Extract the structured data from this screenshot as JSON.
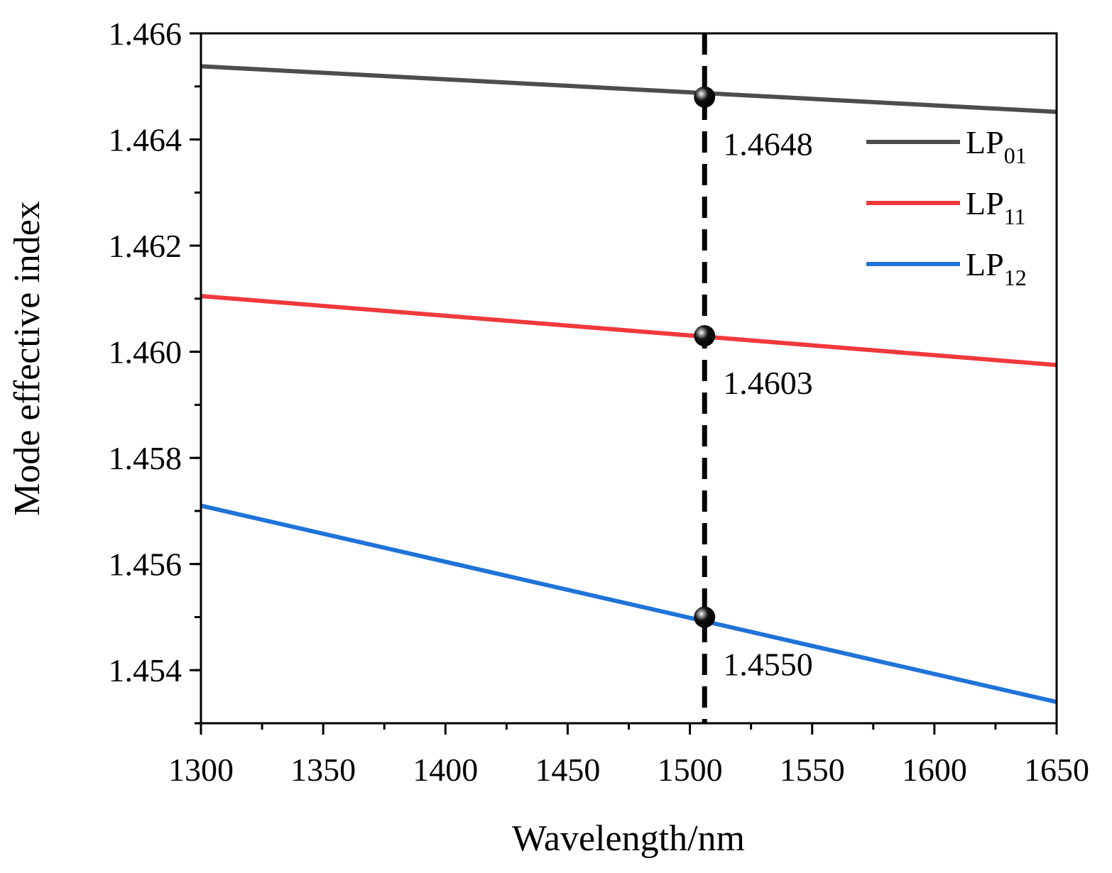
{
  "chart_data": {
    "type": "line",
    "xlabel": "Wavelength/nm",
    "ylabel": "Mode effective index",
    "xlim": [
      1300,
      1650
    ],
    "ylim": [
      1.453,
      1.466
    ],
    "x_ticks": [
      "1300",
      "1350",
      "1400",
      "1450",
      "1500",
      "1550",
      "1600",
      "1650"
    ],
    "y_ticks": [
      "1.454",
      "1.456",
      "1.458",
      "1.460",
      "1.462",
      "1.464",
      "1.466"
    ],
    "grid": false,
    "legend_position": "top-right",
    "series": [
      {
        "name_main": "LP",
        "name_sub": "01",
        "color": "#4d4d4d",
        "x": [
          1300,
          1650
        ],
        "y": [
          1.46538,
          1.46452
        ]
      },
      {
        "name_main": "LP",
        "name_sub": "11",
        "color": "#f0393c",
        "x": [
          1300,
          1650
        ],
        "y": [
          1.46105,
          1.45975
        ]
      },
      {
        "name_main": "LP",
        "name_sub": "12",
        "color": "#1f73d9",
        "x": [
          1300,
          1650
        ],
        "y": [
          1.4571,
          1.4534
        ]
      }
    ],
    "reference_line": {
      "x": 1506,
      "style": "dashed",
      "color": "#000000"
    },
    "annotations": [
      {
        "text": "1.4648",
        "x": 1506,
        "y": 1.4648
      },
      {
        "text": "1.4603",
        "x": 1506,
        "y": 1.4603
      },
      {
        "text": "1.4550",
        "x": 1506,
        "y": 1.455
      }
    ]
  }
}
